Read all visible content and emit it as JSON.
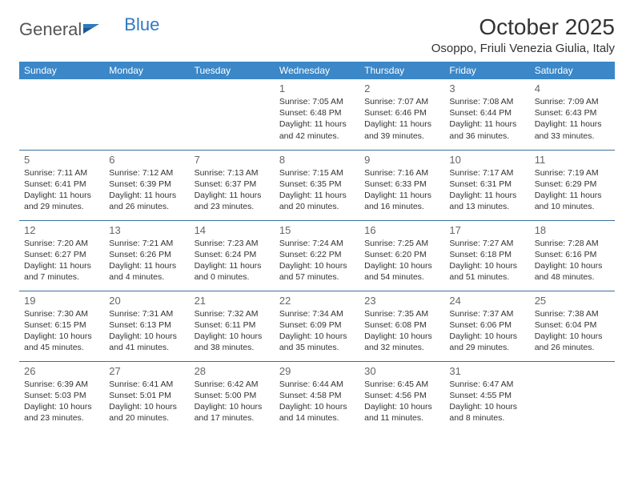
{
  "logo": {
    "text1": "General",
    "text2": "Blue"
  },
  "title": "October 2025",
  "location": "Osoppo, Friuli Venezia Giulia, Italy",
  "colors": {
    "header_bg": "#3b87c8",
    "header_text": "#ffffff",
    "cell_border": "#3b6fa0",
    "daynum": "#666666",
    "body_text": "#333333",
    "logo_gray": "#555555",
    "logo_blue": "#2f7ac0",
    "background": "#ffffff"
  },
  "dayHeaders": [
    "Sunday",
    "Monday",
    "Tuesday",
    "Wednesday",
    "Thursday",
    "Friday",
    "Saturday"
  ],
  "weeks": [
    [
      {
        "n": "",
        "sr": "",
        "ss": "",
        "dl1": "",
        "dl2": ""
      },
      {
        "n": "",
        "sr": "",
        "ss": "",
        "dl1": "",
        "dl2": ""
      },
      {
        "n": "",
        "sr": "",
        "ss": "",
        "dl1": "",
        "dl2": ""
      },
      {
        "n": "1",
        "sr": "Sunrise: 7:05 AM",
        "ss": "Sunset: 6:48 PM",
        "dl1": "Daylight: 11 hours",
        "dl2": "and 42 minutes."
      },
      {
        "n": "2",
        "sr": "Sunrise: 7:07 AM",
        "ss": "Sunset: 6:46 PM",
        "dl1": "Daylight: 11 hours",
        "dl2": "and 39 minutes."
      },
      {
        "n": "3",
        "sr": "Sunrise: 7:08 AM",
        "ss": "Sunset: 6:44 PM",
        "dl1": "Daylight: 11 hours",
        "dl2": "and 36 minutes."
      },
      {
        "n": "4",
        "sr": "Sunrise: 7:09 AM",
        "ss": "Sunset: 6:43 PM",
        "dl1": "Daylight: 11 hours",
        "dl2": "and 33 minutes."
      }
    ],
    [
      {
        "n": "5",
        "sr": "Sunrise: 7:11 AM",
        "ss": "Sunset: 6:41 PM",
        "dl1": "Daylight: 11 hours",
        "dl2": "and 29 minutes."
      },
      {
        "n": "6",
        "sr": "Sunrise: 7:12 AM",
        "ss": "Sunset: 6:39 PM",
        "dl1": "Daylight: 11 hours",
        "dl2": "and 26 minutes."
      },
      {
        "n": "7",
        "sr": "Sunrise: 7:13 AM",
        "ss": "Sunset: 6:37 PM",
        "dl1": "Daylight: 11 hours",
        "dl2": "and 23 minutes."
      },
      {
        "n": "8",
        "sr": "Sunrise: 7:15 AM",
        "ss": "Sunset: 6:35 PM",
        "dl1": "Daylight: 11 hours",
        "dl2": "and 20 minutes."
      },
      {
        "n": "9",
        "sr": "Sunrise: 7:16 AM",
        "ss": "Sunset: 6:33 PM",
        "dl1": "Daylight: 11 hours",
        "dl2": "and 16 minutes."
      },
      {
        "n": "10",
        "sr": "Sunrise: 7:17 AM",
        "ss": "Sunset: 6:31 PM",
        "dl1": "Daylight: 11 hours",
        "dl2": "and 13 minutes."
      },
      {
        "n": "11",
        "sr": "Sunrise: 7:19 AM",
        "ss": "Sunset: 6:29 PM",
        "dl1": "Daylight: 11 hours",
        "dl2": "and 10 minutes."
      }
    ],
    [
      {
        "n": "12",
        "sr": "Sunrise: 7:20 AM",
        "ss": "Sunset: 6:27 PM",
        "dl1": "Daylight: 11 hours",
        "dl2": "and 7 minutes."
      },
      {
        "n": "13",
        "sr": "Sunrise: 7:21 AM",
        "ss": "Sunset: 6:26 PM",
        "dl1": "Daylight: 11 hours",
        "dl2": "and 4 minutes."
      },
      {
        "n": "14",
        "sr": "Sunrise: 7:23 AM",
        "ss": "Sunset: 6:24 PM",
        "dl1": "Daylight: 11 hours",
        "dl2": "and 0 minutes."
      },
      {
        "n": "15",
        "sr": "Sunrise: 7:24 AM",
        "ss": "Sunset: 6:22 PM",
        "dl1": "Daylight: 10 hours",
        "dl2": "and 57 minutes."
      },
      {
        "n": "16",
        "sr": "Sunrise: 7:25 AM",
        "ss": "Sunset: 6:20 PM",
        "dl1": "Daylight: 10 hours",
        "dl2": "and 54 minutes."
      },
      {
        "n": "17",
        "sr": "Sunrise: 7:27 AM",
        "ss": "Sunset: 6:18 PM",
        "dl1": "Daylight: 10 hours",
        "dl2": "and 51 minutes."
      },
      {
        "n": "18",
        "sr": "Sunrise: 7:28 AM",
        "ss": "Sunset: 6:16 PM",
        "dl1": "Daylight: 10 hours",
        "dl2": "and 48 minutes."
      }
    ],
    [
      {
        "n": "19",
        "sr": "Sunrise: 7:30 AM",
        "ss": "Sunset: 6:15 PM",
        "dl1": "Daylight: 10 hours",
        "dl2": "and 45 minutes."
      },
      {
        "n": "20",
        "sr": "Sunrise: 7:31 AM",
        "ss": "Sunset: 6:13 PM",
        "dl1": "Daylight: 10 hours",
        "dl2": "and 41 minutes."
      },
      {
        "n": "21",
        "sr": "Sunrise: 7:32 AM",
        "ss": "Sunset: 6:11 PM",
        "dl1": "Daylight: 10 hours",
        "dl2": "and 38 minutes."
      },
      {
        "n": "22",
        "sr": "Sunrise: 7:34 AM",
        "ss": "Sunset: 6:09 PM",
        "dl1": "Daylight: 10 hours",
        "dl2": "and 35 minutes."
      },
      {
        "n": "23",
        "sr": "Sunrise: 7:35 AM",
        "ss": "Sunset: 6:08 PM",
        "dl1": "Daylight: 10 hours",
        "dl2": "and 32 minutes."
      },
      {
        "n": "24",
        "sr": "Sunrise: 7:37 AM",
        "ss": "Sunset: 6:06 PM",
        "dl1": "Daylight: 10 hours",
        "dl2": "and 29 minutes."
      },
      {
        "n": "25",
        "sr": "Sunrise: 7:38 AM",
        "ss": "Sunset: 6:04 PM",
        "dl1": "Daylight: 10 hours",
        "dl2": "and 26 minutes."
      }
    ],
    [
      {
        "n": "26",
        "sr": "Sunrise: 6:39 AM",
        "ss": "Sunset: 5:03 PM",
        "dl1": "Daylight: 10 hours",
        "dl2": "and 23 minutes."
      },
      {
        "n": "27",
        "sr": "Sunrise: 6:41 AM",
        "ss": "Sunset: 5:01 PM",
        "dl1": "Daylight: 10 hours",
        "dl2": "and 20 minutes."
      },
      {
        "n": "28",
        "sr": "Sunrise: 6:42 AM",
        "ss": "Sunset: 5:00 PM",
        "dl1": "Daylight: 10 hours",
        "dl2": "and 17 minutes."
      },
      {
        "n": "29",
        "sr": "Sunrise: 6:44 AM",
        "ss": "Sunset: 4:58 PM",
        "dl1": "Daylight: 10 hours",
        "dl2": "and 14 minutes."
      },
      {
        "n": "30",
        "sr": "Sunrise: 6:45 AM",
        "ss": "Sunset: 4:56 PM",
        "dl1": "Daylight: 10 hours",
        "dl2": "and 11 minutes."
      },
      {
        "n": "31",
        "sr": "Sunrise: 6:47 AM",
        "ss": "Sunset: 4:55 PM",
        "dl1": "Daylight: 10 hours",
        "dl2": "and 8 minutes."
      },
      {
        "n": "",
        "sr": "",
        "ss": "",
        "dl1": "",
        "dl2": ""
      }
    ]
  ]
}
